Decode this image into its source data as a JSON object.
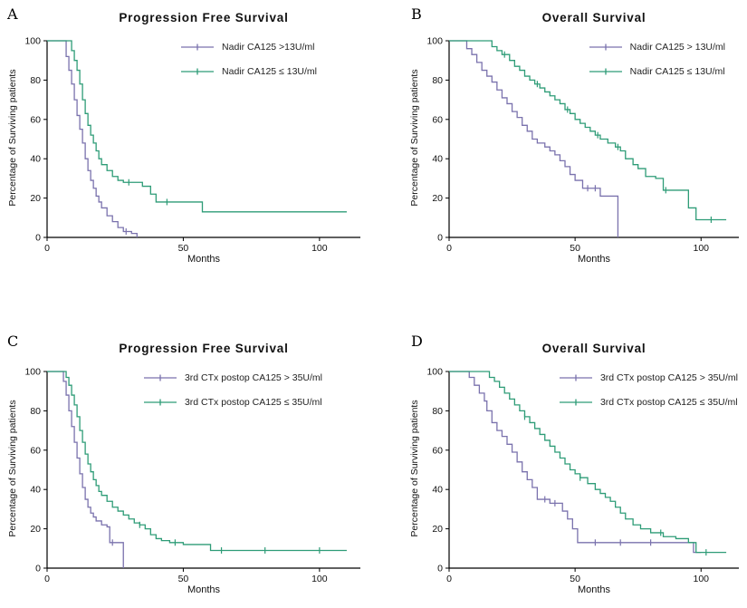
{
  "chart_data": [
    {
      "panel": "A",
      "type": "line",
      "subtype": "kaplan-meier-step",
      "title": "Progression Free Survival",
      "xlabel": "Months",
      "ylabel": "Percentage of Surviving patients",
      "xlim": [
        0,
        115
      ],
      "ylim": [
        0,
        100
      ],
      "xticks": [
        0,
        50,
        100
      ],
      "yticks": [
        0,
        20,
        40,
        60,
        80,
        100
      ],
      "grid": false,
      "legend_position": "top-right-inside",
      "series": [
        {
          "name": "Nadir CA125 >13U/ml",
          "color": "#7a72ad",
          "x": [
            0,
            6,
            7,
            8,
            9,
            10,
            11,
            12,
            13,
            14,
            15,
            16,
            17,
            18,
            19,
            20,
            22,
            24,
            26,
            28,
            31,
            33
          ],
          "y": [
            100,
            100,
            92,
            85,
            78,
            70,
            62,
            55,
            48,
            40,
            34,
            29,
            25,
            21,
            18,
            15,
            11,
            8,
            5,
            3,
            2,
            0
          ],
          "censor_x": [
            29
          ]
        },
        {
          "name": "Nadir CA125 ≤  13U/ml",
          "color": "#2e9c77",
          "x": [
            0,
            8,
            9,
            10,
            11,
            12,
            13,
            14,
            15,
            16,
            17,
            18,
            19,
            20,
            22,
            24,
            26,
            28,
            35,
            38,
            40,
            55,
            57,
            110
          ],
          "y": [
            100,
            100,
            95,
            90,
            85,
            78,
            70,
            63,
            57,
            52,
            48,
            44,
            40,
            37,
            34,
            31,
            29,
            28,
            26,
            22,
            18,
            18,
            13,
            13
          ],
          "censor_x": [
            30,
            44
          ]
        }
      ]
    },
    {
      "panel": "B",
      "type": "line",
      "subtype": "kaplan-meier-step",
      "title": "Overall Survival",
      "xlabel": "Months",
      "ylabel": "Percentage of Surviving patients",
      "xlim": [
        0,
        115
      ],
      "ylim": [
        0,
        100
      ],
      "xticks": [
        0,
        50,
        100
      ],
      "yticks": [
        0,
        20,
        40,
        60,
        80,
        100
      ],
      "grid": false,
      "legend_position": "top-right-inside",
      "series": [
        {
          "name": "Nadir CA125 > 13U/ml",
          "color": "#7a72ad",
          "x": [
            0,
            5,
            7,
            9,
            11,
            13,
            15,
            17,
            19,
            21,
            23,
            25,
            27,
            29,
            31,
            33,
            35,
            38,
            40,
            42,
            44,
            46,
            48,
            50,
            53,
            60,
            67
          ],
          "y": [
            100,
            100,
            96,
            93,
            89,
            85,
            82,
            79,
            75,
            71,
            68,
            64,
            61,
            57,
            54,
            50,
            48,
            46,
            44,
            42,
            39,
            36,
            32,
            29,
            25,
            21,
            0
          ],
          "censor_x": [
            55,
            58
          ]
        },
        {
          "name": "Nadir CA125 ≤  13U/ml",
          "color": "#2e9c77",
          "x": [
            0,
            15,
            17,
            19,
            21,
            24,
            26,
            28,
            30,
            32,
            34,
            36,
            38,
            40,
            42,
            44,
            46,
            48,
            50,
            52,
            54,
            56,
            58,
            60,
            63,
            66,
            68,
            70,
            73,
            75,
            78,
            82,
            85,
            90,
            95,
            98,
            110
          ],
          "y": [
            100,
            100,
            97,
            95,
            93,
            90,
            87,
            85,
            82,
            80,
            78,
            76,
            74,
            72,
            70,
            68,
            65,
            63,
            60,
            58,
            56,
            54,
            52,
            50,
            48,
            46,
            44,
            40,
            37,
            35,
            31,
            30,
            24,
            24,
            15,
            9,
            9
          ],
          "censor_x": [
            22,
            35,
            47,
            59,
            67,
            86,
            104
          ]
        }
      ]
    },
    {
      "panel": "C",
      "type": "line",
      "subtype": "kaplan-meier-step",
      "title": "Progression Free Survival",
      "xlabel": "Months",
      "ylabel": "Percentage of Surviving patients",
      "xlim": [
        0,
        115
      ],
      "ylim": [
        0,
        100
      ],
      "xticks": [
        0,
        50,
        100
      ],
      "yticks": [
        0,
        20,
        40,
        60,
        80,
        100
      ],
      "grid": false,
      "legend_position": "top-right-inside",
      "series": [
        {
          "name": "3rd CTx postop CA125 > 35U/ml",
          "color": "#7a72ad",
          "x": [
            0,
            5,
            6,
            7,
            8,
            9,
            10,
            11,
            12,
            13,
            14,
            15,
            16,
            17,
            18,
            20,
            22,
            23,
            26,
            28
          ],
          "y": [
            100,
            100,
            95,
            88,
            80,
            72,
            64,
            56,
            48,
            41,
            35,
            31,
            28,
            26,
            24,
            22,
            21,
            13,
            13,
            0
          ],
          "censor_x": [
            24
          ]
        },
        {
          "name": "3rd CTx postop CA125 ≤ 35U/ml",
          "color": "#2e9c77",
          "x": [
            0,
            6,
            7,
            8,
            9,
            10,
            11,
            12,
            13,
            14,
            15,
            16,
            17,
            18,
            19,
            20,
            22,
            24,
            26,
            28,
            30,
            32,
            34,
            36,
            38,
            40,
            42,
            45,
            50,
            58,
            60,
            110
          ],
          "y": [
            100,
            100,
            97,
            93,
            88,
            83,
            77,
            70,
            64,
            58,
            53,
            49,
            45,
            42,
            39,
            37,
            34,
            31,
            29,
            27,
            25,
            23,
            22,
            20,
            17,
            15,
            14,
            13,
            12,
            12,
            9,
            9
          ],
          "censor_x": [
            34,
            47,
            64,
            80,
            100
          ]
        }
      ]
    },
    {
      "panel": "D",
      "type": "line",
      "subtype": "kaplan-meier-step",
      "title": "Overall Survival",
      "xlabel": "Months",
      "ylabel": "Percentage of Surviving patients",
      "xlim": [
        0,
        115
      ],
      "ylim": [
        0,
        100
      ],
      "xticks": [
        0,
        50,
        100
      ],
      "yticks": [
        0,
        20,
        40,
        60,
        80,
        100
      ],
      "grid": false,
      "legend_position": "top-right-inside",
      "series": [
        {
          "name": "3rd CTx postop CA125 > 35U/ml",
          "color": "#7a72ad",
          "x": [
            0,
            7,
            8,
            10,
            12,
            14,
            15,
            17,
            19,
            21,
            23,
            25,
            27,
            29,
            31,
            33,
            35,
            40,
            45,
            47,
            49,
            51,
            95,
            97,
            100
          ],
          "y": [
            100,
            100,
            97,
            93,
            89,
            85,
            80,
            74,
            70,
            67,
            63,
            59,
            54,
            49,
            45,
            41,
            35,
            33,
            29,
            25,
            20,
            13,
            13,
            8,
            8
          ],
          "censor_x": [
            38,
            42,
            58,
            68,
            80
          ]
        },
        {
          "name": "3rd CTx postop CA125 ≤ 35U/ml",
          "color": "#2e9c77",
          "x": [
            0,
            14,
            16,
            18,
            20,
            22,
            24,
            26,
            28,
            30,
            32,
            34,
            36,
            38,
            40,
            42,
            44,
            46,
            48,
            50,
            52,
            55,
            58,
            60,
            62,
            64,
            66,
            68,
            70,
            73,
            76,
            80,
            85,
            90,
            95,
            98,
            110
          ],
          "y": [
            100,
            100,
            97,
            95,
            92,
            89,
            86,
            83,
            80,
            77,
            74,
            71,
            68,
            65,
            62,
            59,
            56,
            53,
            50,
            48,
            46,
            43,
            40,
            38,
            36,
            34,
            31,
            28,
            25,
            22,
            20,
            18,
            16,
            15,
            13,
            8,
            8
          ],
          "censor_x": [
            30,
            52,
            84,
            102
          ]
        }
      ]
    }
  ]
}
